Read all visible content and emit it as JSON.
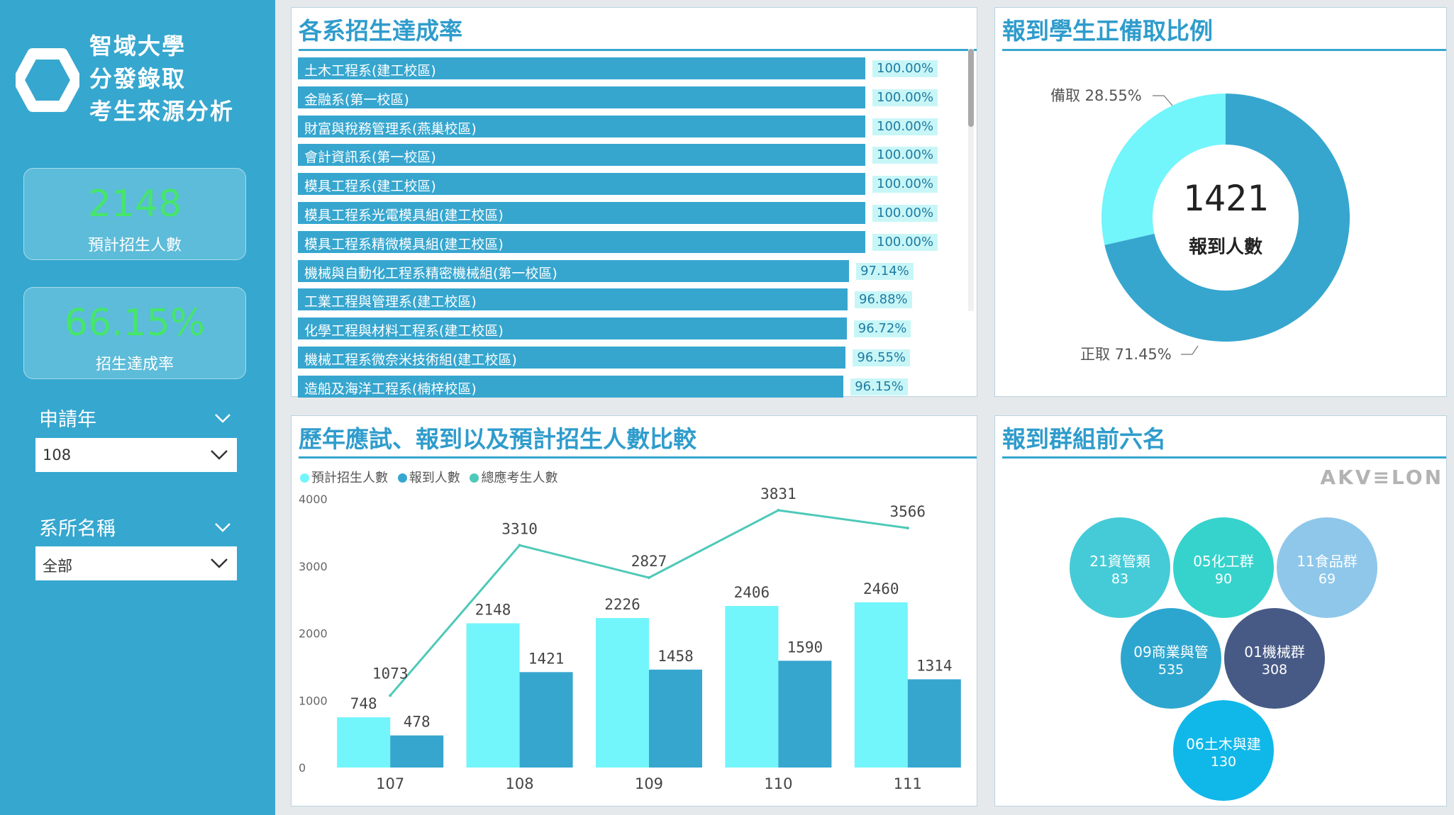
{
  "sidebar": {
    "title_lines": [
      "智域大學",
      "分發錄取",
      "考生來源分析"
    ],
    "kpis": [
      {
        "value": "2148",
        "label": "預計招生人數"
      },
      {
        "value": "66.15%",
        "label": "招生達成率"
      }
    ],
    "filters": [
      {
        "label": "申請年",
        "value": "108"
      },
      {
        "label": "系所名稱",
        "value": "全部"
      }
    ]
  },
  "rate_panel": {
    "title": "各系招生達成率",
    "rows": [
      {
        "label": "土木工程系(建工校區)",
        "value": 100.0,
        "text": "100.00%"
      },
      {
        "label": "金融系(第一校區)",
        "value": 100.0,
        "text": "100.00%"
      },
      {
        "label": "財富與稅務管理系(燕巢校區)",
        "value": 100.0,
        "text": "100.00%"
      },
      {
        "label": "會計資訊系(第一校區)",
        "value": 100.0,
        "text": "100.00%"
      },
      {
        "label": "模具工程系(建工校區)",
        "value": 100.0,
        "text": "100.00%"
      },
      {
        "label": "模具工程系光電模具組(建工校區)",
        "value": 100.0,
        "text": "100.00%"
      },
      {
        "label": "模具工程系精微模具組(建工校區)",
        "value": 100.0,
        "text": "100.00%"
      },
      {
        "label": "機械與自動化工程系精密機械組(第一校區)",
        "value": 97.14,
        "text": "97.14%"
      },
      {
        "label": "工業工程與管理系(建工校區)",
        "value": 96.88,
        "text": "96.88%"
      },
      {
        "label": "化學工程與材料工程系(建工校區)",
        "value": 96.72,
        "text": "96.72%"
      },
      {
        "label": "機械工程系微奈米技術組(建工校區)",
        "value": 96.55,
        "text": "96.55%"
      },
      {
        "label": "造船及海洋工程系(楠梓校區)",
        "value": 96.15,
        "text": "96.15%"
      }
    ]
  },
  "donut_panel": {
    "title": "報到學生正備取比例",
    "center_value": "1421",
    "center_label": "報到人數",
    "slices": [
      {
        "name": "正取",
        "value": 71.45,
        "label": "正取 71.45%",
        "color": "#36a6cf"
      },
      {
        "name": "備取",
        "value": 28.55,
        "label": "備取 28.55%",
        "color": "#72f5fb"
      }
    ]
  },
  "compare_panel": {
    "title": "歷年應試、報到以及預計招生人數比較",
    "legend": [
      {
        "name": "預計招生人數",
        "color": "#72f5fb"
      },
      {
        "name": "報到人數",
        "color": "#36a6cf"
      },
      {
        "name": "總應考生人數",
        "color": "#4ec9b8"
      }
    ],
    "chart_data": {
      "type": "bar",
      "categories": [
        "107",
        "108",
        "109",
        "110",
        "111"
      ],
      "series": [
        {
          "name": "預計招生人數",
          "kind": "bar",
          "values": [
            748,
            2148,
            2226,
            2406,
            2460
          ]
        },
        {
          "name": "報到人數",
          "kind": "bar",
          "values": [
            478,
            1421,
            1458,
            1590,
            1314
          ]
        },
        {
          "name": "總應考生人數",
          "kind": "line",
          "values": [
            1073,
            3310,
            2827,
            3831,
            3566
          ]
        }
      ],
      "y_ticks": [
        "4000",
        "3000",
        "2000",
        "1000",
        "0"
      ],
      "ylim": [
        0,
        4000
      ]
    }
  },
  "group_panel": {
    "title": "報到群組前六名",
    "brand": "AKV≡LON",
    "bubbles": [
      {
        "name": "21資管類",
        "value": "83",
        "color": "#45cbd7"
      },
      {
        "name": "05化工群",
        "value": "90",
        "color": "#36d3cd"
      },
      {
        "name": "11食品群",
        "value": "69",
        "color": "#8ec7ea"
      },
      {
        "name": "09商業與管",
        "value": "535",
        "color": "#2da6cf"
      },
      {
        "name": "01機械群",
        "value": "308",
        "color": "#475a86"
      },
      {
        "name": "06土木與建",
        "value": "130",
        "color": "#10b8e9"
      }
    ]
  }
}
